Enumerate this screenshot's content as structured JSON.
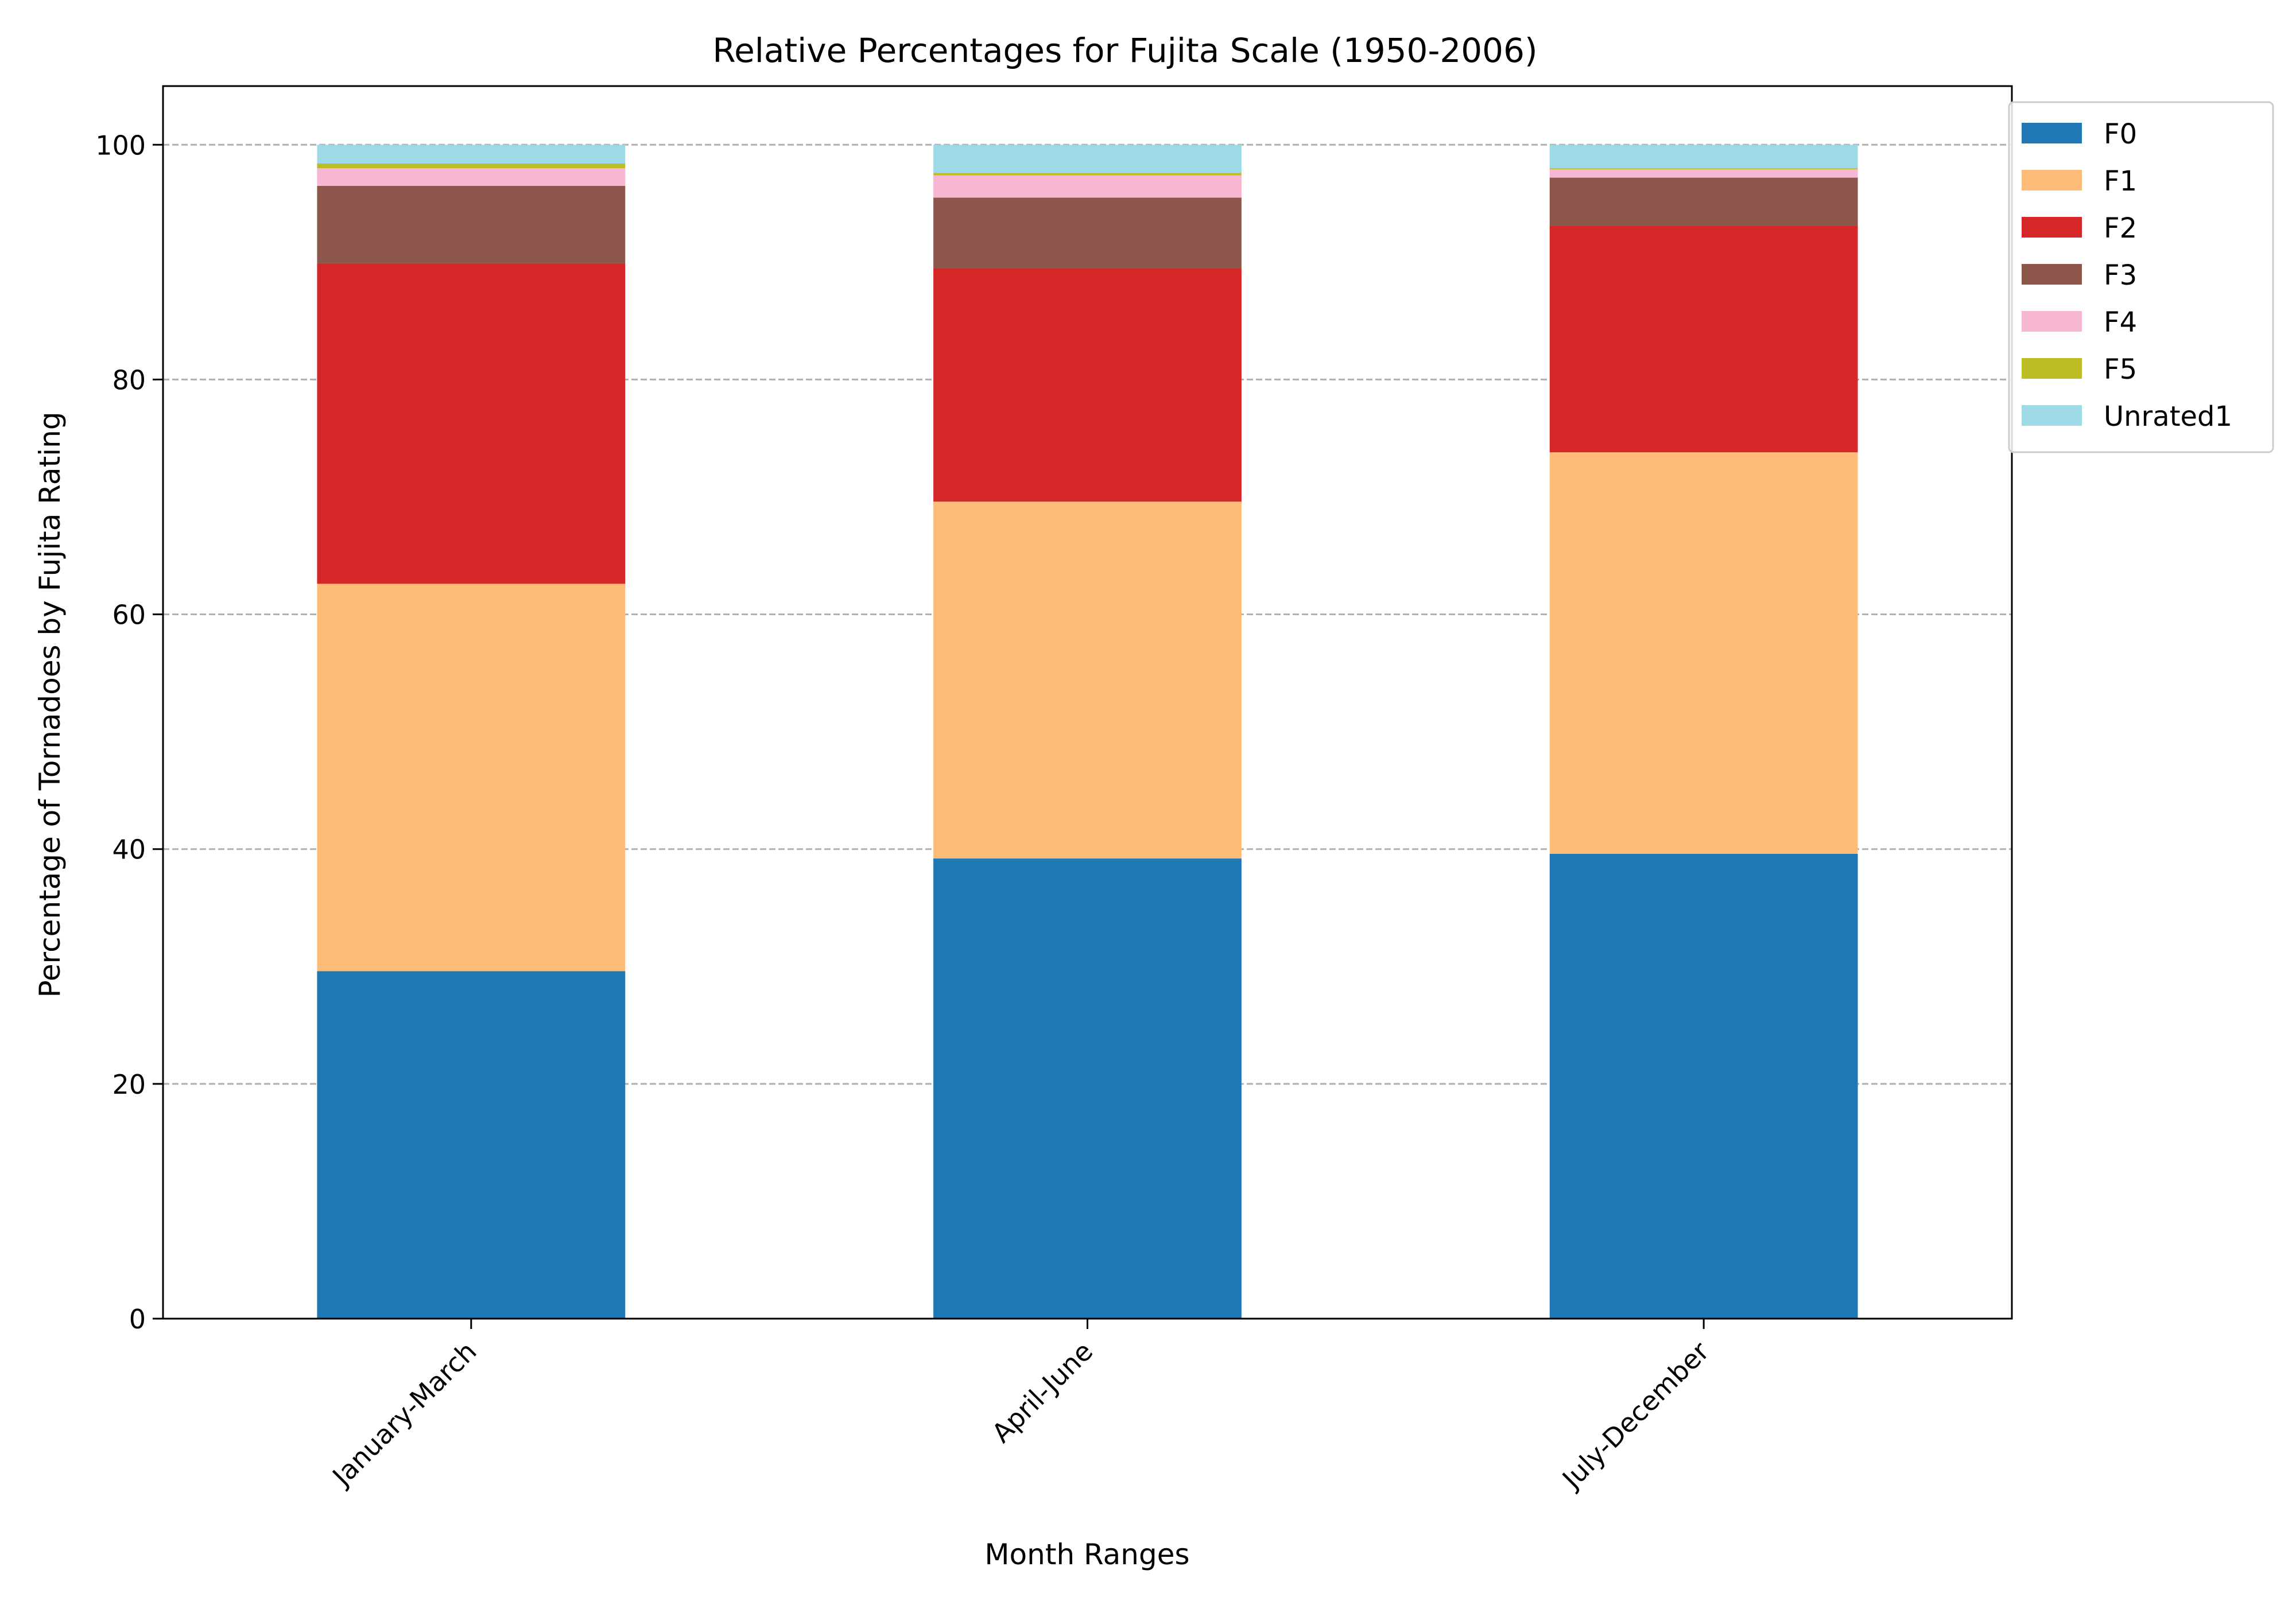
{
  "chart_data": {
    "type": "bar",
    "stacked": true,
    "title": "Relative Percentages for Fujita Scale (1950-2006)",
    "xlabel": "Month Ranges",
    "ylabel": "Percentage of Tornadoes by Fujita Rating",
    "categories": [
      "January-March",
      "April-June",
      "July-December"
    ],
    "ylim": [
      0,
      105
    ],
    "yticks": [
      0,
      20,
      40,
      60,
      80,
      100
    ],
    "grid": "y-dashed",
    "legend_position": "outside-top-right",
    "series": [
      {
        "name": "F0",
        "color": "#1f77b4",
        "values": [
          29.6,
          39.2,
          39.6
        ]
      },
      {
        "name": "F1",
        "color": "#ffbb78",
        "values": [
          33.0,
          30.4,
          34.2
        ]
      },
      {
        "name": "F2",
        "color": "#d62728",
        "values": [
          27.3,
          19.9,
          19.3
        ]
      },
      {
        "name": "F3",
        "color": "#8c564b",
        "values": [
          6.6,
          6.0,
          4.1
        ]
      },
      {
        "name": "F4",
        "color": "#f7b6d2",
        "values": [
          1.5,
          1.9,
          0.7
        ]
      },
      {
        "name": "F5",
        "color": "#bcbd22",
        "values": [
          0.4,
          0.2,
          0.1
        ]
      },
      {
        "name": "Unrated1",
        "color": "#9edae5",
        "values": [
          1.6,
          2.4,
          2.0
        ]
      }
    ]
  }
}
